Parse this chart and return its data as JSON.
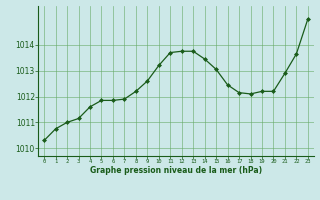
{
  "x": [
    0,
    1,
    2,
    3,
    4,
    5,
    6,
    7,
    8,
    9,
    10,
    11,
    12,
    13,
    14,
    15,
    16,
    17,
    18,
    19,
    20,
    21,
    22,
    23
  ],
  "y": [
    1010.3,
    1010.75,
    1011.0,
    1011.15,
    1011.6,
    1011.85,
    1011.85,
    1011.9,
    1012.2,
    1012.6,
    1013.2,
    1013.7,
    1013.75,
    1013.75,
    1013.45,
    1013.05,
    1012.45,
    1012.15,
    1012.1,
    1012.2,
    1012.2,
    1012.9,
    1013.65,
    1015.0
  ],
  "line_color": "#1a5c1a",
  "marker_color": "#1a5c1a",
  "bg_color": "#cce8e8",
  "grid_color": "#66aa66",
  "xlabel": "Graphe pression niveau de la mer (hPa)",
  "xlabel_color": "#1a5c1a",
  "ylabel_ticks": [
    1010,
    1011,
    1012,
    1013,
    1014
  ],
  "xlim": [
    -0.5,
    23.5
  ],
  "ylim": [
    1009.7,
    1015.5
  ],
  "tick_color": "#1a5c1a",
  "dpi": 100
}
